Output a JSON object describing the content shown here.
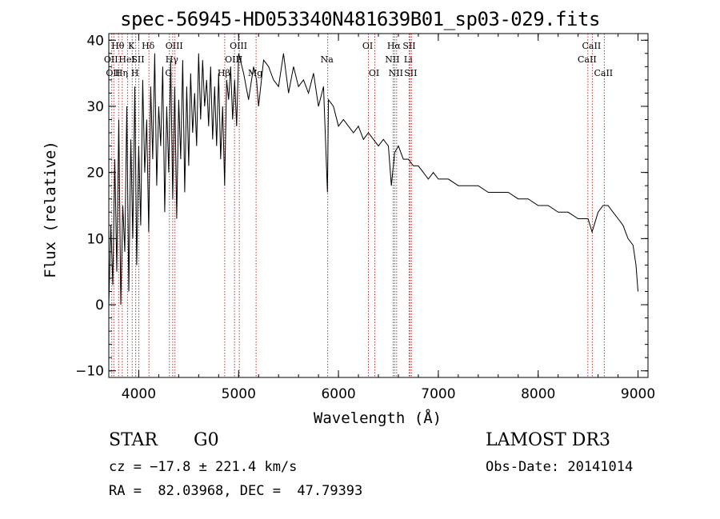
{
  "chart_data": {
    "type": "line",
    "title": "spec-56945-HD053340N481639B01_sp03-029.fits",
    "xlabel": "Wavelength (Å)",
    "ylabel": "Flux (relative)",
    "xlim": [
      3700,
      9100
    ],
    "ylim": [
      -11,
      41
    ],
    "x_ticks": [
      4000,
      5000,
      6000,
      7000,
      8000,
      9000
    ],
    "y_ticks": [
      -10,
      0,
      10,
      20,
      30,
      40
    ],
    "x_tick_labels": [
      "4000",
      "5000",
      "6000",
      "7000",
      "8000",
      "9000"
    ],
    "y_tick_labels": [
      "−10",
      "0",
      "10",
      "20",
      "30",
      "40"
    ],
    "spectrum": {
      "name": "flux",
      "x": [
        3700,
        3720,
        3740,
        3760,
        3780,
        3800,
        3820,
        3840,
        3860,
        3880,
        3900,
        3920,
        3940,
        3960,
        3980,
        4000,
        4020,
        4040,
        4060,
        4080,
        4100,
        4120,
        4140,
        4160,
        4180,
        4200,
        4220,
        4240,
        4260,
        4280,
        4300,
        4320,
        4340,
        4360,
        4380,
        4400,
        4420,
        4440,
        4460,
        4480,
        4500,
        4520,
        4540,
        4560,
        4580,
        4600,
        4620,
        4640,
        4660,
        4680,
        4700,
        4720,
        4740,
        4760,
        4780,
        4800,
        4820,
        4840,
        4860,
        4880,
        4900,
        4920,
        4940,
        4960,
        4980,
        5000,
        5050,
        5100,
        5150,
        5180,
        5200,
        5250,
        5300,
        5350,
        5400,
        5450,
        5500,
        5550,
        5600,
        5650,
        5700,
        5750,
        5800,
        5850,
        5890,
        5900,
        5950,
        6000,
        6050,
        6100,
        6150,
        6200,
        6250,
        6300,
        6350,
        6400,
        6450,
        6500,
        6530,
        6563,
        6600,
        6650,
        6700,
        6750,
        6800,
        6850,
        6900,
        6950,
        7000,
        7100,
        7200,
        7300,
        7400,
        7500,
        7600,
        7700,
        7800,
        7900,
        8000,
        8100,
        8200,
        8300,
        8400,
        8500,
        8540,
        8560,
        8600,
        8650,
        8700,
        8750,
        8800,
        8850,
        8900,
        8950,
        8980,
        9000
      ],
      "y": [
        0,
        12,
        3,
        22,
        5,
        28,
        0,
        15,
        8,
        30,
        2,
        25,
        10,
        33,
        6,
        24,
        12,
        34,
        20,
        28,
        11,
        33,
        22,
        38,
        18,
        30,
        24,
        36,
        14,
        30,
        20,
        37,
        16,
        33,
        13,
        31,
        22,
        37,
        17,
        33,
        21,
        35,
        26,
        32,
        24,
        38,
        28,
        37,
        30,
        34,
        27,
        36,
        25,
        33,
        24,
        35,
        22,
        30,
        18,
        34,
        31,
        36,
        28,
        34,
        27,
        38,
        35,
        31,
        36,
        34,
        30,
        37,
        36,
        34,
        33,
        38,
        32,
        36,
        33,
        34,
        32,
        35,
        30,
        33,
        17,
        31,
        30,
        27,
        28,
        27,
        26,
        27,
        25,
        26,
        25,
        24,
        25,
        24,
        18,
        23,
        24,
        22,
        22,
        21,
        21,
        20,
        19,
        20,
        19,
        19,
        18,
        18,
        18,
        17,
        17,
        17,
        16,
        16,
        15,
        15,
        14,
        14,
        13,
        13,
        11,
        12,
        14,
        15,
        15,
        14,
        13,
        12,
        10,
        9,
        6,
        2
      ]
    },
    "lines": [
      {
        "wave": 3730,
        "label": "OII",
        "row": 2
      },
      {
        "wave": 3750,
        "label": "OII",
        "row": 3
      },
      {
        "wave": 3798,
        "label": "Hθ",
        "row": 1
      },
      {
        "wave": 3835,
        "label": "Hη",
        "row": 3
      },
      {
        "wave": 3889,
        "label": "HeI",
        "row": 2
      },
      {
        "wave": 3934,
        "label": "K",
        "row": 1
      },
      {
        "wave": 3970,
        "label": "H",
        "row": 3
      },
      {
        "wave": 4000,
        "label": "SII",
        "row": 2
      },
      {
        "wave": 4102,
        "label": "Hδ",
        "row": 1
      },
      {
        "wave": 4340,
        "label": "Hγ",
        "row": 2
      },
      {
        "wave": 4307,
        "label": "G",
        "row": 3
      },
      {
        "wave": 4363,
        "label": "OIII",
        "row": 1
      },
      {
        "wave": 4861,
        "label": "Hβ",
        "row": 3
      },
      {
        "wave": 4959,
        "label": "OIII",
        "row": 2
      },
      {
        "wave": 5007,
        "label": "OIII",
        "row": 1
      },
      {
        "wave": 5175,
        "label": "Mg",
        "row": 3
      },
      {
        "wave": 5893,
        "label": "Na",
        "row": 2
      },
      {
        "wave": 6300,
        "label": "OI",
        "row": 1
      },
      {
        "wave": 6364,
        "label": "OI",
        "row": 3
      },
      {
        "wave": 6548,
        "label": "NII",
        "row": 2
      },
      {
        "wave": 6563,
        "label": "Hα",
        "row": 1
      },
      {
        "wave": 6583,
        "label": "NII",
        "row": 3
      },
      {
        "wave": 6707,
        "label": "Li",
        "row": 2
      },
      {
        "wave": 6716,
        "label": "SII",
        "row": 1
      },
      {
        "wave": 6731,
        "label": "SII",
        "row": 3
      },
      {
        "wave": 8498,
        "label": "CaII",
        "row": 2
      },
      {
        "wave": 8542,
        "label": "CaII",
        "row": 1
      },
      {
        "wave": 8662,
        "label": "CaII",
        "row": 3
      }
    ]
  },
  "info": {
    "class_label": "STAR",
    "subclass": "G0",
    "survey": "LAMOST DR3",
    "cz": "cz = −17.8 ± 221.4 km/s",
    "obs_date": "Obs-Date: 20141014",
    "coords": "RA =  82.03968, DEC =  47.79393"
  },
  "colors": {
    "line_marker": "#b22222",
    "spectrum": "#000000",
    "axes": "#000000"
  }
}
